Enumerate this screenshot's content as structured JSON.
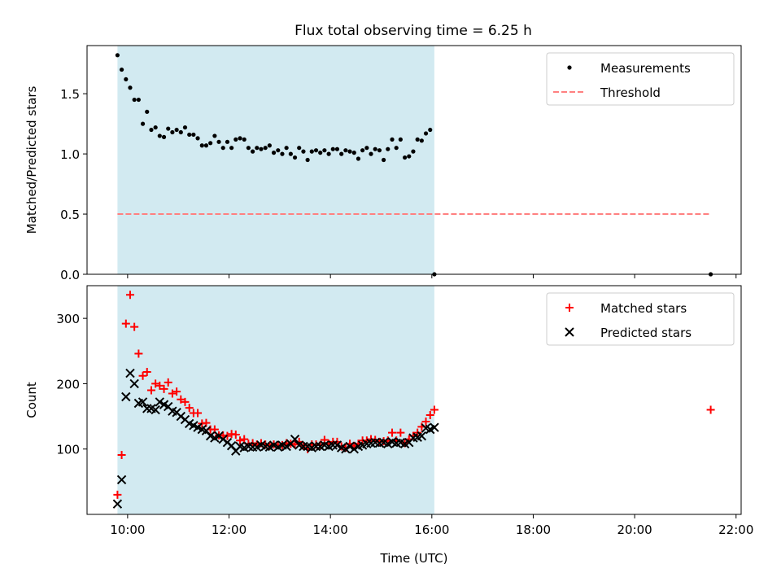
{
  "title": "Flux total observing time = 6.25 h",
  "colors": {
    "shade": "#add8e6",
    "matched": "#ff0000",
    "predicted": "#000000",
    "measurement": "#000000",
    "threshold": "#ff8080"
  },
  "chart_data": [
    {
      "type": "scatter",
      "panel": "top",
      "ylabel": "Matched/Predicted stars",
      "xlim": [
        9.2,
        22.1
      ],
      "ylim": [
        0,
        1.9
      ],
      "yticks": [
        0,
        0.5,
        1.0,
        1.5
      ],
      "ytick_labels": [
        "0.0",
        "0.5",
        "1.0",
        "1.5"
      ],
      "xticks": [
        10,
        12,
        14,
        16,
        18,
        20,
        22
      ],
      "legend": {
        "placement": "upper right",
        "entries": [
          "Measurements",
          "Threshold"
        ]
      },
      "shaded_span": [
        9.8,
        16.05
      ],
      "threshold": {
        "name": "Threshold",
        "y": 0.5,
        "x_range": [
          9.8,
          21.5
        ],
        "style": "dashed"
      },
      "series": [
        {
          "name": "Measurements",
          "marker": "dot",
          "x": [
            9.8,
            9.883,
            9.967,
            10.05,
            10.133,
            10.217,
            10.3,
            10.383,
            10.467,
            10.55,
            10.633,
            10.717,
            10.8,
            10.883,
            10.967,
            11.05,
            11.133,
            11.217,
            11.3,
            11.383,
            11.467,
            11.55,
            11.633,
            11.717,
            11.8,
            11.883,
            11.967,
            12.05,
            12.133,
            12.217,
            12.3,
            12.383,
            12.467,
            12.55,
            12.633,
            12.717,
            12.8,
            12.883,
            12.967,
            13.05,
            13.133,
            13.217,
            13.3,
            13.383,
            13.467,
            13.55,
            13.633,
            13.717,
            13.8,
            13.883,
            13.967,
            14.05,
            14.133,
            14.217,
            14.3,
            14.383,
            14.467,
            14.55,
            14.633,
            14.717,
            14.8,
            14.883,
            14.967,
            15.05,
            15.133,
            15.217,
            15.3,
            15.383,
            15.467,
            15.55,
            15.633,
            15.717,
            15.8,
            15.883,
            15.967,
            16.05,
            21.5
          ],
          "y": [
            1.82,
            1.7,
            1.62,
            1.55,
            1.45,
            1.45,
            1.25,
            1.35,
            1.2,
            1.22,
            1.15,
            1.14,
            1.21,
            1.18,
            1.2,
            1.18,
            1.22,
            1.16,
            1.16,
            1.13,
            1.07,
            1.07,
            1.09,
            1.15,
            1.1,
            1.05,
            1.1,
            1.05,
            1.12,
            1.13,
            1.12,
            1.05,
            1.02,
            1.05,
            1.04,
            1.05,
            1.07,
            1.01,
            1.03,
            1.0,
            1.05,
            1.0,
            0.97,
            1.05,
            1.02,
            0.95,
            1.02,
            1.03,
            1.01,
            1.03,
            1.0,
            1.04,
            1.04,
            1.0,
            1.03,
            1.02,
            1.01,
            0.96,
            1.03,
            1.05,
            1.0,
            1.04,
            1.03,
            0.95,
            1.04,
            1.12,
            1.05,
            1.12,
            0.97,
            0.98,
            1.02,
            1.12,
            1.11,
            1.17,
            1.2,
            0.0,
            0.0
          ]
        }
      ]
    },
    {
      "type": "scatter",
      "panel": "bottom",
      "xlabel": "Time (UTC)",
      "ylabel": "Count",
      "xlim": [
        9.2,
        22.1
      ],
      "ylim": [
        0,
        350
      ],
      "yticks": [
        100,
        200,
        300
      ],
      "xticks": [
        10,
        12,
        14,
        16,
        18,
        20,
        22
      ],
      "xtick_labels": [
        "10:00",
        "12:00",
        "14:00",
        "16:00",
        "18:00",
        "20:00",
        "22:00"
      ],
      "legend": {
        "placement": "upper right",
        "entries": [
          "Matched stars",
          "Predicted stars"
        ]
      },
      "shaded_span": [
        9.8,
        16.05
      ],
      "series": [
        {
          "name": "Matched stars",
          "marker": "plus",
          "x": [
            9.8,
            9.883,
            9.967,
            10.05,
            10.133,
            10.217,
            10.3,
            10.383,
            10.467,
            10.55,
            10.633,
            10.717,
            10.8,
            10.883,
            10.967,
            11.05,
            11.133,
            11.217,
            11.3,
            11.383,
            11.467,
            11.55,
            11.633,
            11.717,
            11.8,
            11.883,
            11.967,
            12.05,
            12.133,
            12.217,
            12.3,
            12.383,
            12.467,
            12.55,
            12.633,
            12.717,
            12.8,
            12.883,
            12.967,
            13.05,
            13.133,
            13.217,
            13.3,
            13.383,
            13.467,
            13.55,
            13.633,
            13.717,
            13.8,
            13.883,
            13.967,
            14.05,
            14.133,
            14.217,
            14.3,
            14.383,
            14.467,
            14.55,
            14.633,
            14.717,
            14.8,
            14.883,
            14.967,
            15.05,
            15.133,
            15.217,
            15.3,
            15.383,
            15.467,
            15.55,
            15.633,
            15.717,
            15.8,
            15.883,
            15.967,
            16.05,
            21.5
          ],
          "y": [
            30,
            91,
            292,
            336,
            287,
            246,
            212,
            218,
            190,
            200,
            197,
            192,
            202,
            185,
            188,
            176,
            172,
            163,
            155,
            155,
            139,
            140,
            130,
            130,
            121,
            121,
            120,
            123,
            122,
            113,
            115,
            108,
            109,
            107,
            109,
            107,
            105,
            107,
            106,
            106,
            109,
            108,
            107,
            111,
            105,
            100,
            107,
            107,
            106,
            114,
            108,
            111,
            111,
            104,
            102,
            108,
            105,
            108,
            113,
            113,
            115,
            114,
            111,
            112,
            113,
            125,
            113,
            125,
            109,
            115,
            120,
            125,
            134,
            142,
            152,
            160,
            160
          ]
        },
        {
          "name": "Predicted stars",
          "marker": "x",
          "x": [
            9.8,
            9.883,
            9.967,
            10.05,
            10.133,
            10.217,
            10.3,
            10.383,
            10.467,
            10.55,
            10.633,
            10.717,
            10.8,
            10.883,
            10.967,
            11.05,
            11.133,
            11.217,
            11.3,
            11.383,
            11.467,
            11.55,
            11.633,
            11.717,
            11.8,
            11.883,
            11.967,
            12.05,
            12.133,
            12.217,
            12.3,
            12.383,
            12.467,
            12.55,
            12.633,
            12.717,
            12.8,
            12.883,
            12.967,
            13.05,
            13.133,
            13.217,
            13.3,
            13.383,
            13.467,
            13.55,
            13.633,
            13.717,
            13.8,
            13.883,
            13.967,
            14.05,
            14.133,
            14.217,
            14.3,
            14.383,
            14.467,
            14.55,
            14.633,
            14.717,
            14.8,
            14.883,
            14.967,
            15.05,
            15.133,
            15.217,
            15.3,
            15.383,
            15.467,
            15.55,
            15.633,
            15.717,
            15.8,
            15.883,
            15.967,
            16.05
          ],
          "y": [
            16,
            53,
            180,
            216,
            200,
            170,
            172,
            162,
            162,
            160,
            172,
            168,
            165,
            158,
            156,
            150,
            145,
            139,
            136,
            133,
            130,
            128,
            120,
            117,
            120,
            115,
            110,
            105,
            97,
            104,
            102,
            104,
            103,
            103,
            106,
            104,
            103,
            106,
            103,
            106,
            104,
            108,
            115,
            106,
            104,
            104,
            102,
            104,
            104,
            106,
            104,
            106,
            106,
            102,
            100,
            104,
            100,
            104,
            106,
            108,
            109,
            110,
            109,
            110,
            108,
            111,
            109,
            110,
            108,
            110,
            117,
            118,
            120,
            132,
            130,
            133
          ]
        }
      ]
    }
  ]
}
